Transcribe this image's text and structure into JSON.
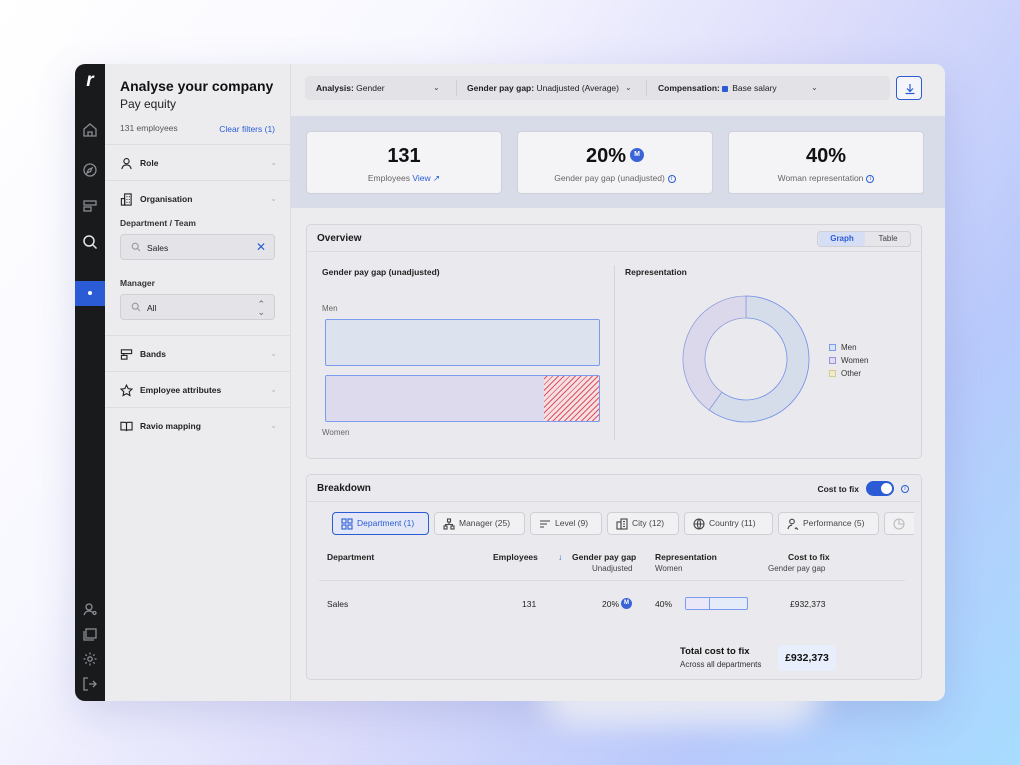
{
  "sidebar": {
    "title": "Analyse your company",
    "subtitle": "Pay equity",
    "employee_count": "131 employees",
    "clear_filters": "Clear filters (1)",
    "sections": {
      "role": "Role",
      "organisation": "Organisation",
      "bands": "Bands",
      "employee_attributes": "Employee attributes",
      "ravio_mapping": "Ravio mapping"
    },
    "department_label": "Department / Team",
    "department_value": "Sales",
    "manager_label": "Manager",
    "manager_value": "All"
  },
  "topbar": {
    "analysis_label": "Analysis:",
    "analysis_value": "Gender",
    "gap_label": "Gender pay gap:",
    "gap_value": "Unadjusted (Average)",
    "comp_label": "Compensation:",
    "comp_value": "Base salary"
  },
  "stats": {
    "employees_value": "131",
    "employees_caption": "Employees",
    "employees_link": "View",
    "gap_value": "20%",
    "gap_badge": "M",
    "gap_caption": "Gender pay gap (unadjusted)",
    "women_value": "40%",
    "women_caption": "Woman representation"
  },
  "overview": {
    "title": "Overview",
    "toggle_graph": "Graph",
    "toggle_table": "Table",
    "gap_chart_title": "Gender pay gap (unadjusted)",
    "label_men": "Men",
    "label_women": "Women",
    "men_level": 1.0,
    "women_level": 0.8,
    "representation_title": "Representation",
    "representation": {
      "men": 0.6,
      "women": 0.4,
      "other": 0.0
    },
    "legend": [
      "Men",
      "Women",
      "Other"
    ]
  },
  "breakdown": {
    "title": "Breakdown",
    "cost_to_fix_label": "Cost to fix",
    "tabs": [
      "Department (1)",
      "Manager (25)",
      "Level (9)",
      "City (12)",
      "Country (11)",
      "Performance (5)"
    ],
    "columns": {
      "department": "Department",
      "employees": "Employees",
      "gap": "Gender pay gap",
      "gap_sub": "Unadjusted",
      "representation": "Representation",
      "representation_sub": "Women",
      "cost": "Cost to fix",
      "cost_sub": "Gender pay gap"
    },
    "row": {
      "department": "Sales",
      "employees": "131",
      "gap": "20%",
      "gap_badge": "M",
      "representation": "40%",
      "representation_fraction": 0.4,
      "cost": "£932,373"
    },
    "total_label": "Total cost to fix",
    "total_sub": "Across all departments",
    "total_value": "£932,373"
  },
  "colors": {
    "accent": "#2b5cd6",
    "rail": "#191a1c",
    "women_bar": "#dcdaf0",
    "gap_hatch": "#e0555c"
  }
}
